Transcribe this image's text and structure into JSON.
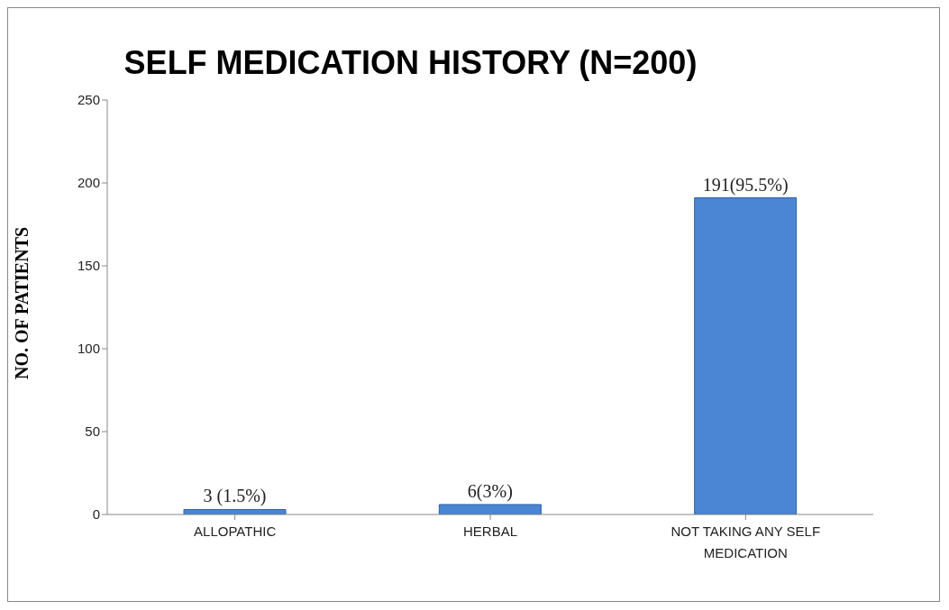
{
  "chart_data": {
    "type": "bar",
    "title": "SELF MEDICATION HISTORY (N=200)",
    "ylabel": "NO. OF PATIENTS",
    "categories": [
      "ALLOPATHIC",
      "HERBAL",
      "NOT TAKING ANY SELF MEDICATION"
    ],
    "values": [
      3,
      6,
      191
    ],
    "value_labels": [
      "3 (1.5%)",
      "6(3%)",
      "191(95.5%)"
    ],
    "color": "#4a86d4",
    "ylim": [
      0,
      250
    ],
    "yticks": [
      0,
      50,
      100,
      150,
      200,
      250
    ],
    "grid": false,
    "legend": false
  }
}
